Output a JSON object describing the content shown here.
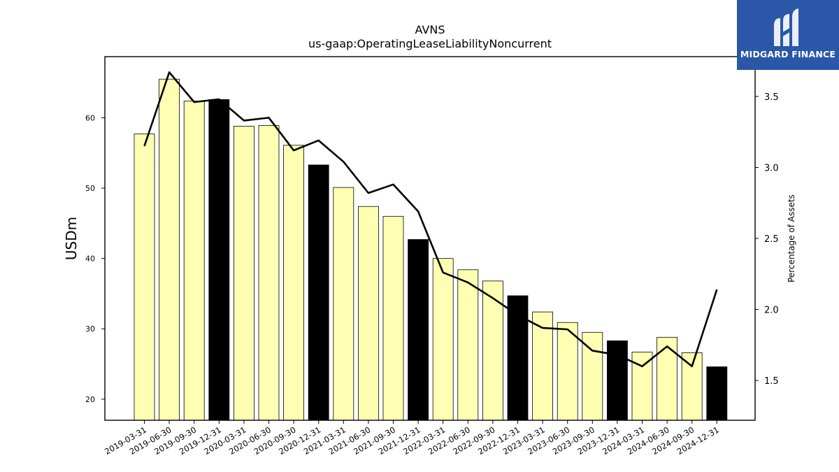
{
  "chart_data": {
    "type": "bar",
    "title": "AVNS",
    "subtitle": "us-gaap:OperatingLeaseLiabilityNoncurrent",
    "ylabel": "USDm",
    "y2label": "Percentage of Assets",
    "ylim": [
      17,
      68.7
    ],
    "y2lim": [
      1.22,
      3.78
    ],
    "yticks": [
      20,
      30,
      40,
      50,
      60
    ],
    "y2ticks": [
      1.5,
      2.0,
      2.5,
      3.0,
      3.5
    ],
    "categories": [
      "2019-03-31",
      "2019-06-30",
      "2019-09-30",
      "2019-12-31",
      "2020-03-31",
      "2020-06-30",
      "2020-09-30",
      "2020-12-31",
      "2021-03-31",
      "2021-06-30",
      "2021-09-30",
      "2021-12-31",
      "2022-03-31",
      "2022-06-30",
      "2022-09-30",
      "2022-12-31",
      "2023-03-31",
      "2023-06-30",
      "2023-09-30",
      "2023-12-31",
      "2024-03-31",
      "2024-06-30",
      "2024-09-30",
      "2024-12-31"
    ],
    "series": [
      {
        "type": "bar",
        "axis": "left",
        "values": [
          57.7,
          65.5,
          62.4,
          62.6,
          58.8,
          58.9,
          56.1,
          53.3,
          50.1,
          47.4,
          46.0,
          42.7,
          40.0,
          38.4,
          36.8,
          34.7,
          32.4,
          30.9,
          29.5,
          28.3,
          26.7,
          28.8,
          26.6,
          24.6
        ]
      },
      {
        "type": "line",
        "axis": "right",
        "values": [
          3.15,
          3.67,
          3.46,
          3.48,
          3.33,
          3.35,
          3.12,
          3.19,
          3.04,
          2.82,
          2.88,
          2.69,
          2.26,
          2.19,
          2.08,
          1.96,
          1.87,
          1.86,
          1.71,
          1.68,
          1.6,
          1.74,
          1.6,
          2.14
        ]
      }
    ],
    "colors": {
      "bar": "#ffffb3",
      "bar_year_end": "#000000",
      "line": "#000000"
    },
    "grid": false
  },
  "logo": {
    "text": "MIDGARD FINANCE",
    "background": "#2b57a8"
  }
}
